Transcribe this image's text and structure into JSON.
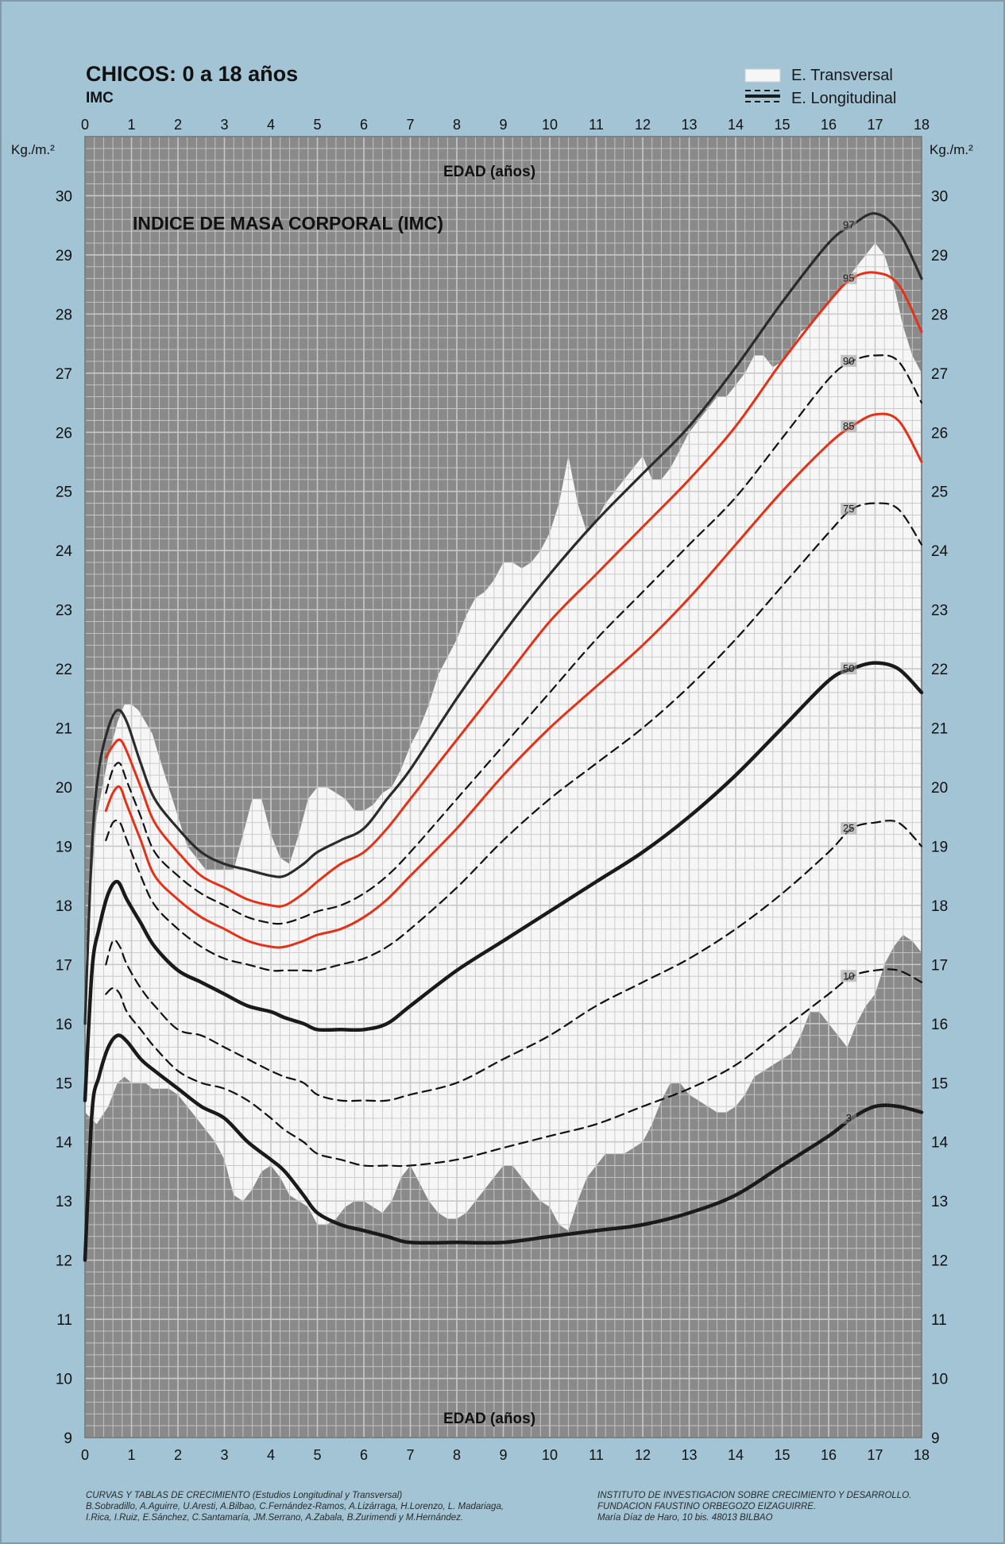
{
  "header": {
    "title": "CHICOS: 0 a 18 años",
    "subtitle": "IMC",
    "legend_cross": "E. Transversal",
    "legend_long": "E. Longitudinal"
  },
  "chart_data": {
    "type": "line",
    "title": "INDICE DE MASA CORPORAL (IMC)",
    "xlabel": "EDAD (años)",
    "ylabel": "Kg./m.²",
    "xlim": [
      0,
      18
    ],
    "ylim": [
      9,
      31
    ],
    "x_ticks": [
      "0",
      "1",
      "2",
      "3",
      "4",
      "5",
      "6",
      "7",
      "8",
      "9",
      "10",
      "11",
      "12",
      "13",
      "14",
      "15",
      "16",
      "17",
      "18"
    ],
    "y_ticks": [
      "9",
      "10",
      "11",
      "12",
      "13",
      "14",
      "15",
      "16",
      "17",
      "18",
      "19",
      "20",
      "21",
      "22",
      "23",
      "24",
      "25",
      "26",
      "27",
      "28",
      "29",
      "30"
    ],
    "grid": true,
    "legend": "top-right",
    "colors": {
      "background": "#a2c4d4",
      "plot": "#8a8a8a",
      "band": "#f6f6f6",
      "red": "#e23218",
      "dark": "#1a1a1a"
    },
    "series": [
      {
        "name": "97",
        "style": "solid-dark",
        "x": [
          0,
          0.15,
          0.3,
          0.5,
          0.7,
          0.9,
          1.2,
          1.5,
          2,
          2.5,
          3,
          3.5,
          4,
          4.3,
          4.7,
          5,
          5.5,
          6,
          6.5,
          7,
          8,
          9,
          10,
          11,
          12,
          13,
          14,
          15,
          16,
          16.5,
          17,
          17.5,
          18
        ],
        "y": [
          16.0,
          19.0,
          20.3,
          21.0,
          21.3,
          21.1,
          20.4,
          19.8,
          19.3,
          18.9,
          18.7,
          18.6,
          18.5,
          18.5,
          18.7,
          18.9,
          19.1,
          19.3,
          19.8,
          20.3,
          21.5,
          22.6,
          23.6,
          24.5,
          25.3,
          26.1,
          27.1,
          28.2,
          29.2,
          29.5,
          29.7,
          29.4,
          28.6
        ]
      },
      {
        "name": "95",
        "style": "solid-red",
        "x": [
          0.45,
          0.6,
          0.75,
          0.9,
          1.2,
          1.5,
          2,
          2.5,
          3,
          3.5,
          4,
          4.3,
          4.7,
          5,
          5.5,
          6,
          6.5,
          7,
          8,
          9,
          10,
          11,
          12,
          13,
          14,
          15,
          16,
          16.5,
          17,
          17.5,
          18
        ],
        "y": [
          20.5,
          20.7,
          20.8,
          20.6,
          20.0,
          19.4,
          18.9,
          18.5,
          18.3,
          18.1,
          18.0,
          18.0,
          18.2,
          18.4,
          18.7,
          18.9,
          19.3,
          19.8,
          20.8,
          21.8,
          22.8,
          23.6,
          24.4,
          25.2,
          26.1,
          27.2,
          28.2,
          28.6,
          28.7,
          28.5,
          27.7
        ]
      },
      {
        "name": "90",
        "style": "dashed",
        "x": [
          0.45,
          0.6,
          0.75,
          0.9,
          1.2,
          1.5,
          2,
          2.5,
          3,
          3.5,
          4,
          4.3,
          4.7,
          5,
          5.5,
          6,
          6.5,
          7,
          8,
          9,
          10,
          11,
          12,
          13,
          14,
          15,
          16,
          16.5,
          17,
          17.5,
          18
        ],
        "y": [
          19.9,
          20.3,
          20.4,
          20.1,
          19.5,
          18.9,
          18.5,
          18.2,
          18.0,
          17.8,
          17.7,
          17.7,
          17.8,
          17.9,
          18.0,
          18.2,
          18.5,
          18.9,
          19.8,
          20.7,
          21.6,
          22.5,
          23.3,
          24.1,
          24.9,
          25.9,
          26.9,
          27.2,
          27.3,
          27.2,
          26.5
        ]
      },
      {
        "name": "85",
        "style": "solid-red",
        "x": [
          0.45,
          0.6,
          0.75,
          0.9,
          1.2,
          1.5,
          2,
          2.5,
          3,
          3.5,
          4,
          4.3,
          4.7,
          5,
          5.5,
          6,
          6.5,
          7,
          8,
          9,
          10,
          11,
          12,
          13,
          14,
          15,
          16,
          16.5,
          17,
          17.5,
          18
        ],
        "y": [
          19.6,
          19.9,
          20.0,
          19.7,
          19.1,
          18.5,
          18.1,
          17.8,
          17.6,
          17.4,
          17.3,
          17.3,
          17.4,
          17.5,
          17.6,
          17.8,
          18.1,
          18.5,
          19.3,
          20.2,
          21.0,
          21.7,
          22.4,
          23.2,
          24.1,
          25.0,
          25.8,
          26.1,
          26.3,
          26.2,
          25.5
        ]
      },
      {
        "name": "75",
        "style": "dashed",
        "x": [
          0.45,
          0.6,
          0.75,
          0.9,
          1.2,
          1.5,
          2,
          2.5,
          3,
          3.5,
          4,
          4.3,
          4.7,
          5,
          5.5,
          6,
          6.5,
          7,
          8,
          9,
          10,
          11,
          12,
          13,
          14,
          15,
          16,
          16.5,
          17,
          17.5,
          18
        ],
        "y": [
          19.1,
          19.4,
          19.4,
          19.1,
          18.5,
          18.0,
          17.6,
          17.3,
          17.1,
          17.0,
          16.9,
          16.9,
          16.9,
          16.9,
          17.0,
          17.1,
          17.3,
          17.6,
          18.3,
          19.1,
          19.8,
          20.4,
          21.0,
          21.7,
          22.5,
          23.4,
          24.3,
          24.7,
          24.8,
          24.7,
          24.1
        ]
      },
      {
        "name": "50",
        "style": "solid-dark-thick",
        "x": [
          0,
          0.15,
          0.3,
          0.5,
          0.7,
          0.9,
          1.2,
          1.5,
          2,
          2.5,
          3,
          3.5,
          4,
          4.3,
          4.7,
          5,
          5.5,
          6,
          6.5,
          7,
          8,
          9,
          10,
          11,
          12,
          13,
          14,
          15,
          16,
          16.5,
          17,
          17.5,
          18
        ],
        "y": [
          14.7,
          16.9,
          17.6,
          18.2,
          18.4,
          18.1,
          17.7,
          17.3,
          16.9,
          16.7,
          16.5,
          16.3,
          16.2,
          16.1,
          16.0,
          15.9,
          15.9,
          15.9,
          16.0,
          16.3,
          16.9,
          17.4,
          17.9,
          18.4,
          18.9,
          19.5,
          20.2,
          21.0,
          21.8,
          22.0,
          22.1,
          22.0,
          21.6
        ]
      },
      {
        "name": "25",
        "style": "dashed",
        "x": [
          0.45,
          0.6,
          0.75,
          0.9,
          1.2,
          1.5,
          2,
          2.5,
          3,
          3.5,
          4,
          4.3,
          4.7,
          5,
          5.5,
          6,
          6.5,
          7,
          8,
          9,
          10,
          11,
          12,
          13,
          14,
          15,
          16,
          16.5,
          17,
          17.5,
          18
        ],
        "y": [
          17.0,
          17.4,
          17.3,
          17.0,
          16.6,
          16.3,
          15.9,
          15.8,
          15.6,
          15.4,
          15.2,
          15.1,
          15.0,
          14.8,
          14.7,
          14.7,
          14.7,
          14.8,
          15.0,
          15.4,
          15.8,
          16.3,
          16.7,
          17.1,
          17.6,
          18.2,
          18.9,
          19.3,
          19.4,
          19.4,
          19.0
        ]
      },
      {
        "name": "10",
        "style": "dashed",
        "x": [
          0.45,
          0.6,
          0.75,
          0.9,
          1.2,
          1.5,
          2,
          2.5,
          3,
          3.5,
          4,
          4.3,
          4.7,
          5,
          5.5,
          6,
          6.5,
          7,
          8,
          9,
          10,
          11,
          12,
          13,
          14,
          15,
          16,
          16.5,
          17,
          17.5,
          18
        ],
        "y": [
          16.5,
          16.6,
          16.5,
          16.2,
          15.9,
          15.6,
          15.2,
          15.0,
          14.9,
          14.7,
          14.4,
          14.2,
          14.0,
          13.8,
          13.7,
          13.6,
          13.6,
          13.6,
          13.7,
          13.9,
          14.1,
          14.3,
          14.6,
          14.9,
          15.3,
          15.9,
          16.5,
          16.8,
          16.9,
          16.9,
          16.7
        ]
      },
      {
        "name": "3",
        "style": "solid-dark-thick",
        "x": [
          0,
          0.15,
          0.3,
          0.5,
          0.7,
          0.9,
          1.2,
          1.5,
          2,
          2.5,
          3,
          3.5,
          4,
          4.3,
          4.7,
          5,
          5.5,
          6,
          6.5,
          7,
          8,
          9,
          10,
          11,
          12,
          13,
          14,
          15,
          16,
          16.5,
          17,
          17.5,
          18
        ],
        "y": [
          12.0,
          14.5,
          15.1,
          15.6,
          15.8,
          15.7,
          15.4,
          15.2,
          14.9,
          14.6,
          14.4,
          14.0,
          13.7,
          13.5,
          13.1,
          12.8,
          12.6,
          12.5,
          12.4,
          12.3,
          12.3,
          12.3,
          12.4,
          12.5,
          12.6,
          12.8,
          13.1,
          13.6,
          14.1,
          14.4,
          14.6,
          14.6,
          14.5
        ]
      }
    ],
    "cross_sectional_band": {
      "name": "E. Transversal",
      "x": [
        0,
        0.25,
        0.5,
        0.7,
        0.85,
        1.0,
        1.15,
        1.3,
        1.45,
        1.6,
        1.8,
        2.0,
        2.2,
        2.4,
        2.6,
        2.8,
        3.0,
        3.2,
        3.4,
        3.6,
        3.8,
        4.0,
        4.2,
        4.4,
        4.6,
        4.8,
        5.0,
        5.2,
        5.4,
        5.6,
        5.8,
        6.0,
        6.2,
        6.4,
        6.6,
        6.8,
        7.0,
        7.2,
        7.4,
        7.6,
        7.8,
        8.0,
        8.2,
        8.4,
        8.6,
        8.8,
        9.0,
        9.2,
        9.4,
        9.6,
        9.8,
        10.0,
        10.2,
        10.4,
        10.6,
        10.8,
        11.0,
        11.2,
        11.4,
        11.6,
        11.8,
        12.0,
        12.2,
        12.4,
        12.6,
        12.8,
        13.0,
        13.2,
        13.4,
        13.6,
        13.8,
        14.0,
        14.2,
        14.4,
        14.6,
        14.8,
        15.0,
        15.2,
        15.4,
        15.6,
        15.8,
        16.0,
        16.2,
        16.4,
        16.6,
        16.8,
        17.0,
        17.2,
        17.4,
        17.6,
        17.8,
        18.0
      ],
      "upper": [
        17.0,
        19.5,
        20.5,
        21.1,
        21.4,
        21.4,
        21.3,
        21.1,
        20.9,
        20.5,
        20.0,
        19.5,
        19.0,
        18.8,
        18.6,
        18.6,
        18.6,
        18.6,
        19.2,
        19.8,
        19.8,
        19.2,
        18.8,
        18.7,
        19.2,
        19.8,
        20.0,
        20.0,
        19.9,
        19.8,
        19.6,
        19.6,
        19.7,
        19.9,
        20.0,
        20.3,
        20.7,
        21.0,
        21.4,
        21.9,
        22.2,
        22.5,
        22.9,
        23.2,
        23.3,
        23.5,
        23.8,
        23.8,
        23.7,
        23.8,
        24.0,
        24.3,
        24.8,
        25.6,
        24.8,
        24.3,
        24.5,
        24.8,
        25.0,
        25.2,
        25.4,
        25.6,
        25.2,
        25.2,
        25.4,
        25.7,
        26.0,
        26.2,
        26.4,
        26.6,
        26.6,
        26.8,
        27.0,
        27.3,
        27.3,
        27.1,
        27.2,
        27.4,
        27.7,
        27.8,
        28.0,
        28.2,
        28.4,
        28.6,
        28.8,
        29.0,
        29.2,
        29.0,
        28.5,
        27.8,
        27.3,
        27.0
      ],
      "lower": [
        14.5,
        14.3,
        14.6,
        15.0,
        15.1,
        15.0,
        15.0,
        15.0,
        14.9,
        14.9,
        14.9,
        14.8,
        14.6,
        14.4,
        14.2,
        14.0,
        13.7,
        13.1,
        13.0,
        13.2,
        13.5,
        13.6,
        13.4,
        13.1,
        13.0,
        12.9,
        12.6,
        12.6,
        12.7,
        12.9,
        13.0,
        13.0,
        12.9,
        12.8,
        13.0,
        13.4,
        13.6,
        13.3,
        13.0,
        12.8,
        12.7,
        12.7,
        12.8,
        13.0,
        13.2,
        13.4,
        13.6,
        13.6,
        13.4,
        13.2,
        13.0,
        12.9,
        12.6,
        12.5,
        13.0,
        13.4,
        13.6,
        13.8,
        13.8,
        13.8,
        13.9,
        14.0,
        14.3,
        14.7,
        15.0,
        15.0,
        14.8,
        14.7,
        14.6,
        14.5,
        14.5,
        14.6,
        14.8,
        15.1,
        15.2,
        15.3,
        15.4,
        15.5,
        15.8,
        16.2,
        16.2,
        16.0,
        15.8,
        15.6,
        16.0,
        16.3,
        16.5,
        17.0,
        17.3,
        17.5,
        17.4,
        17.2
      ]
    }
  },
  "footer": {
    "left": [
      "CURVAS Y TABLAS DE CRECIMIENTO (Estudios Longitudinal y Transversal)",
      "B.Sobradillo, A.Aguirre, U.Aresti, A.Bilbao, C.Fernández-Ramos, A.Lizárraga, H.Lorenzo, L. Madariaga,",
      "I.Rica, I.Ruiz, E.Sánchez, C.Santamaría, JM.Serrano, A.Zabala, B.Zurimendi y M.Hernández."
    ],
    "right": [
      "INSTITUTO DE INVESTIGACION SOBRE CRECIMIENTO Y DESARROLLO.",
      "FUNDACION FAUSTINO ORBEGOZO EIZAGUIRRE.",
      "María Díaz de Haro, 10 bis. 48013 BILBAO"
    ]
  }
}
